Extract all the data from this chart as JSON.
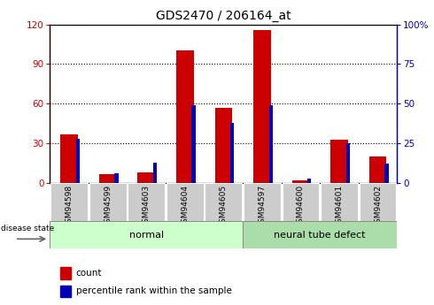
{
  "title": "GDS2470 / 206164_at",
  "samples": [
    "GSM94598",
    "GSM94599",
    "GSM94603",
    "GSM94604",
    "GSM94605",
    "GSM94597",
    "GSM94600",
    "GSM94601",
    "GSM94602"
  ],
  "count": [
    37,
    7,
    8,
    100,
    57,
    116,
    2,
    33,
    20
  ],
  "percentile": [
    28,
    6,
    13,
    49,
    38,
    49,
    3,
    25,
    12
  ],
  "normal_indices": [
    0,
    1,
    2,
    3,
    4
  ],
  "disease_indices": [
    5,
    6,
    7,
    8
  ],
  "left_ylim": [
    0,
    120
  ],
  "right_ylim": [
    0,
    100
  ],
  "left_yticks": [
    0,
    30,
    60,
    90,
    120
  ],
  "right_yticks": [
    0,
    25,
    50,
    75,
    100
  ],
  "red_color": "#cc0000",
  "blue_color": "#0000bb",
  "normal_bg": "#ccffcc",
  "disease_bg": "#aaddaa",
  "xticklabel_bg": "#cccccc",
  "legend_count": "count",
  "legend_pct": "percentile rank within the sample",
  "disease_label_normal": "normal",
  "disease_label_disease": "neural tube defect",
  "disease_state_label": "disease state"
}
